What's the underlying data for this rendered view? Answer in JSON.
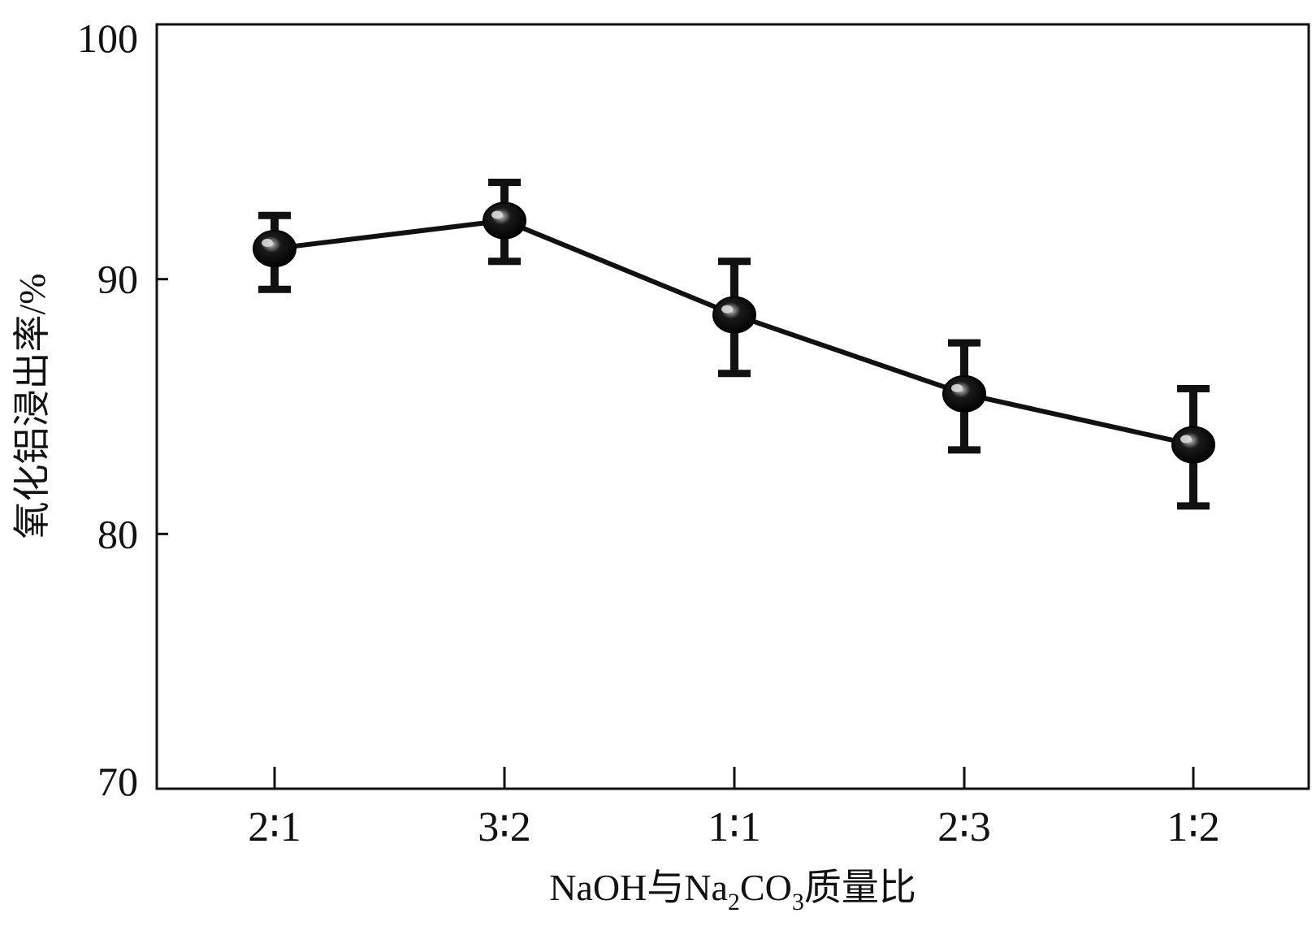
{
  "chart_data": {
    "type": "line",
    "categories": [
      "2∶1",
      "3∶2",
      "1∶1",
      "2∶3",
      "1∶2"
    ],
    "series": [
      {
        "values": [
          91.2,
          92.3,
          88.6,
          85.5,
          83.5
        ],
        "error_low": [
          89.6,
          90.7,
          86.3,
          83.3,
          81.1
        ],
        "error_high": [
          92.5,
          93.8,
          90.7,
          87.5,
          85.7
        ]
      }
    ],
    "ylim": [
      70,
      100
    ],
    "yticks": [
      70,
      80,
      90,
      100
    ],
    "ylabel": "氧化铝浸出率/%",
    "xlabel": {
      "prefix": "NaOH与Na",
      "sub1": "2",
      "mid": "CO",
      "sub2": "3",
      "suffix": "质量比"
    },
    "grid": false,
    "colors": {
      "line": "#111111",
      "marker": "#0a0a0a",
      "highlight": "#d8d8d8"
    }
  }
}
